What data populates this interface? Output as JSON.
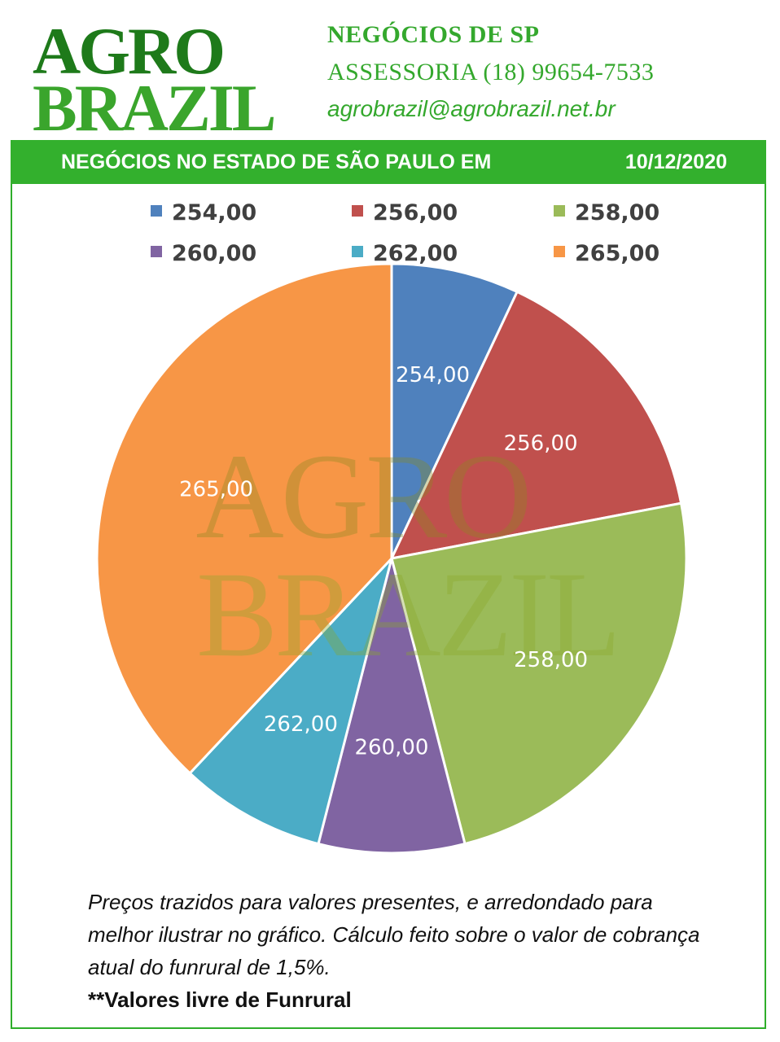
{
  "header": {
    "logo_line1": "AGRO",
    "logo_line2": "BRAZIL",
    "contact_line1": "NEGÓCIOS DE SP",
    "contact_line2": "ASSESSORIA (18) 99654-7533",
    "contact_line3": "agrobrazil@agrobrazil.net.br"
  },
  "banner": {
    "title": "NEGÓCIOS NO ESTADO DE SÃO PAULO EM",
    "date": "10/12/2020"
  },
  "watermark": {
    "line1": "AGRO",
    "line2": "BRAZIL"
  },
  "chart_data": {
    "type": "pie",
    "title": "",
    "legend_position": "top",
    "labels": [
      "254,00",
      "256,00",
      "258,00",
      "260,00",
      "262,00",
      "265,00"
    ],
    "values": [
      7,
      15,
      24,
      8,
      8,
      38
    ],
    "colors": [
      "#4f81bd",
      "#c0504d",
      "#9bbb59",
      "#8064a2",
      "#4bacc6",
      "#f79646"
    ]
  },
  "footnote": {
    "italic_text": "Preços trazidos para valores presentes, e arredondado para melhor ilustrar no gráfico. Cálculo feito sobre o valor de cobrança atual do funrural de 1,5%.",
    "bold_text": "**Valores livre de Funrural"
  }
}
